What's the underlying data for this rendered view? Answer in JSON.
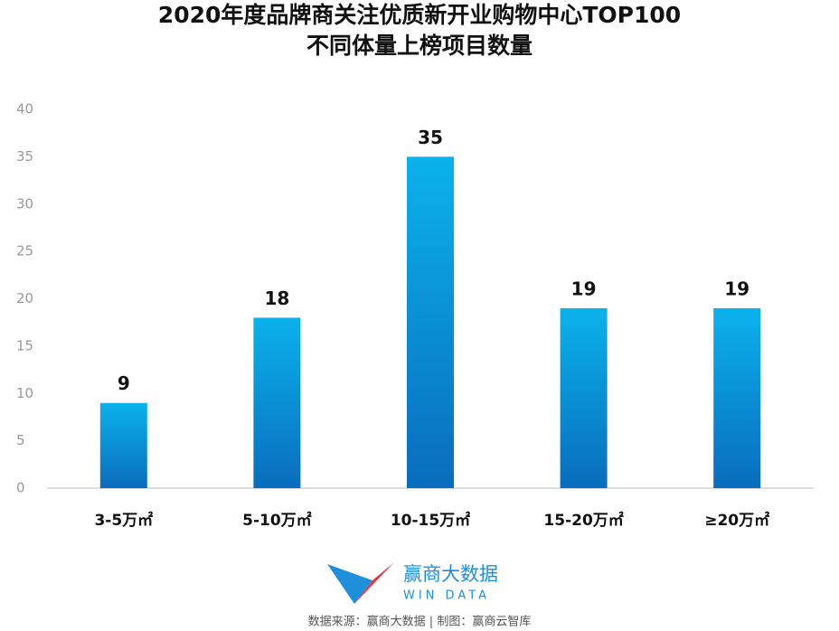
{
  "chart_data": {
    "type": "bar",
    "title": "2020年度品牌商关注优质新开业购物中心TOP100",
    "subtitle": "不同体量上榜项目数量",
    "categories": [
      "3-5万㎡",
      "5-10万㎡",
      "10-15万㎡",
      "15-20万㎡",
      "≥20万㎡"
    ],
    "values": [
      9,
      18,
      35,
      19,
      19
    ],
    "color": "#0bb2ec",
    "ylim": [
      0,
      40
    ],
    "yticks": [
      0,
      5,
      10,
      15,
      20,
      25,
      30,
      35,
      40
    ],
    "grid": false
  },
  "logo": {
    "name": "赢商大数据",
    "subname": "WIN DATA"
  },
  "source": "数据来源：赢商大数据 | 制图：赢商云智库"
}
